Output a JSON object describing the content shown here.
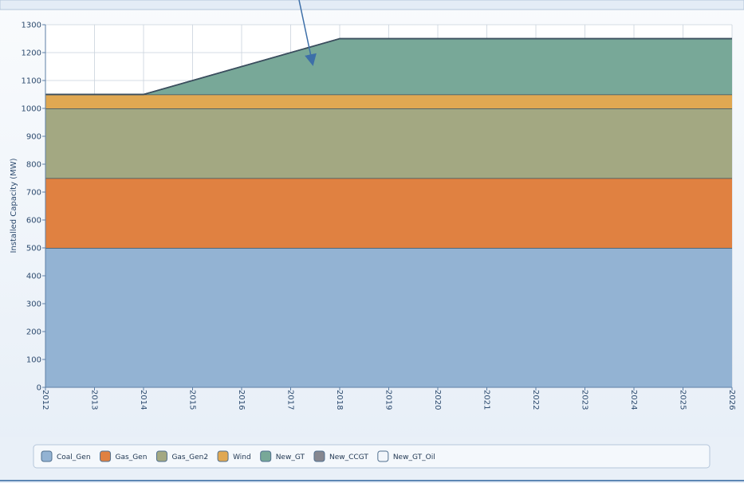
{
  "chart_data": {
    "type": "stacked-area",
    "y_label": "Installed Capacity (MW)",
    "x": [
      2012,
      2013,
      2014,
      2015,
      2016,
      2017,
      2018,
      2019,
      2020,
      2021,
      2022,
      2023,
      2024,
      2025,
      2026
    ],
    "xlim": [
      2012,
      2026
    ],
    "xticks": [
      2012,
      2013,
      2014,
      2015,
      2016,
      2017,
      2018,
      2019,
      2020,
      2021,
      2022,
      2023,
      2024,
      2025,
      2026
    ],
    "ylim": [
      0,
      1300
    ],
    "yticks": [
      0,
      100,
      200,
      300,
      400,
      500,
      600,
      700,
      800,
      900,
      1000,
      1100,
      1200,
      1300
    ],
    "grid": true,
    "legend": "bottom",
    "series": [
      {
        "name": "Coal_Gen",
        "color": "#93b3d3",
        "values": [
          500,
          500,
          500,
          500,
          500,
          500,
          500,
          500,
          500,
          500,
          500,
          500,
          500,
          500,
          500
        ]
      },
      {
        "name": "Gas_Gen",
        "color": "#e08141",
        "values": [
          250,
          250,
          250,
          250,
          250,
          250,
          250,
          250,
          250,
          250,
          250,
          250,
          250,
          250,
          250
        ]
      },
      {
        "name": "Gas_Gen2",
        "color": "#a3a882",
        "values": [
          250,
          250,
          250,
          250,
          250,
          250,
          250,
          250,
          250,
          250,
          250,
          250,
          250,
          250,
          250
        ]
      },
      {
        "name": "Wind",
        "color": "#e0a852",
        "values": [
          50,
          50,
          50,
          50,
          50,
          50,
          50,
          50,
          50,
          50,
          50,
          50,
          50,
          50,
          50
        ]
      },
      {
        "name": "New_GT",
        "color": "#78a898",
        "values": [
          0,
          0,
          0,
          50,
          100,
          150,
          200,
          200,
          200,
          200,
          200,
          200,
          200,
          200,
          200
        ]
      },
      {
        "name": "New_CCGT",
        "color": "#86878f",
        "values": [
          0,
          0,
          0,
          0,
          0,
          0,
          0,
          0,
          0,
          0,
          0,
          0,
          0,
          0,
          0
        ]
      },
      {
        "name": "New_GT_Oil",
        "color": "#f2f6fb",
        "values": [
          0,
          0,
          0,
          0,
          0,
          0,
          0,
          0,
          0,
          0,
          0,
          0,
          0,
          0,
          0
        ]
      }
    ]
  }
}
